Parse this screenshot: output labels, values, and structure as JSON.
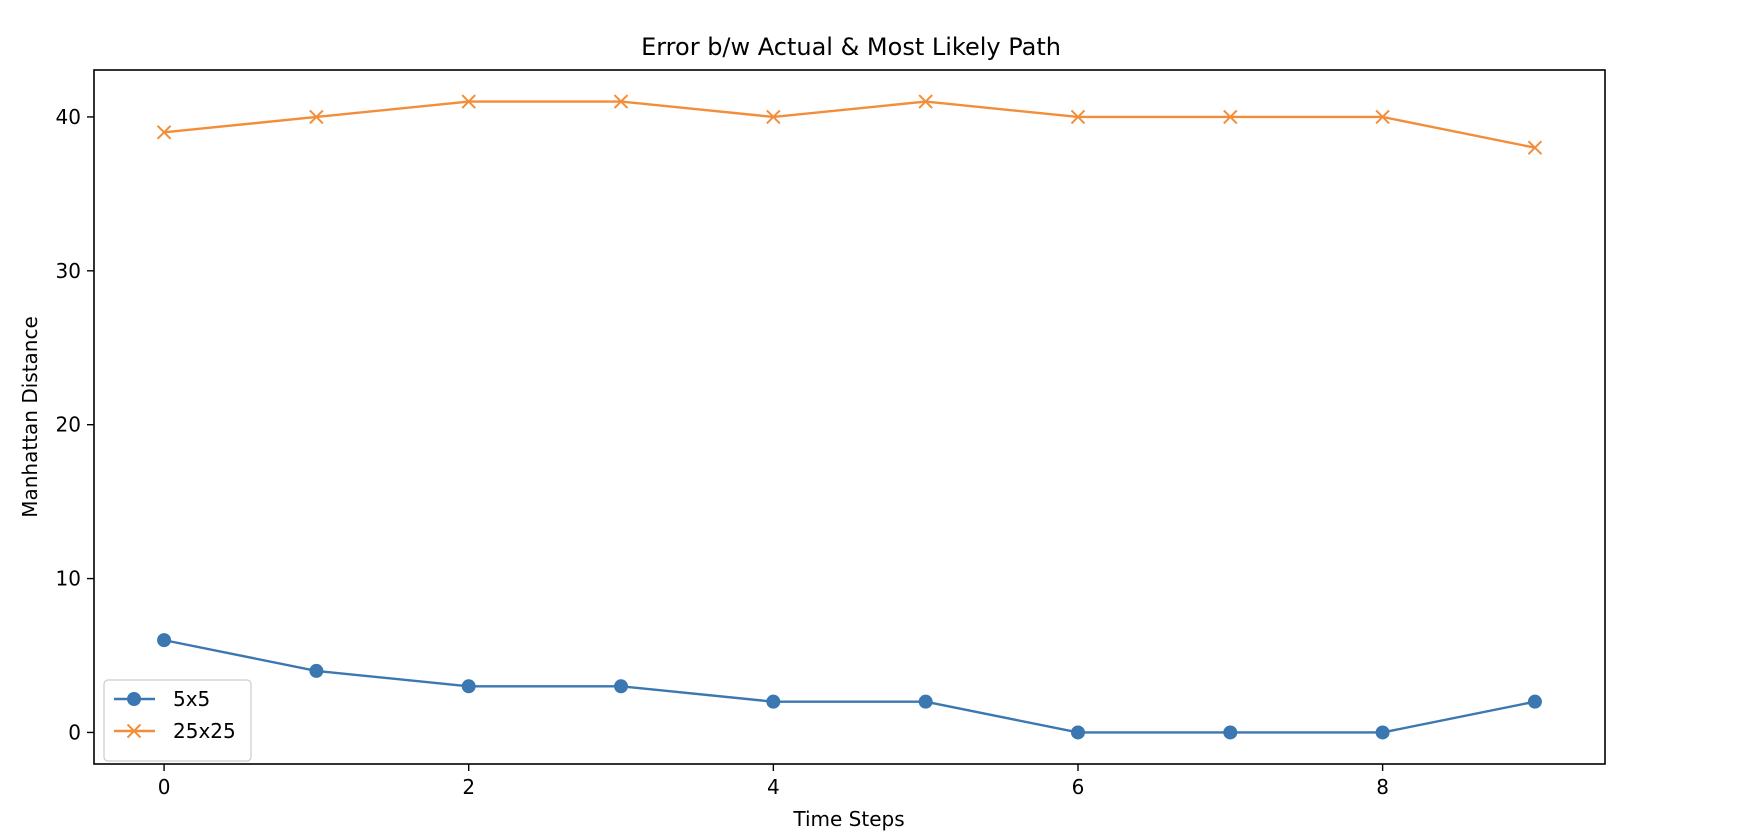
{
  "chart_data": {
    "type": "line",
    "title": "Error b/w Actual & Most Likely Path",
    "xlabel": "Time Steps",
    "ylabel": "Manhattan Distance",
    "x": [
      0,
      1,
      2,
      3,
      4,
      5,
      6,
      7,
      8,
      9
    ],
    "xticks": [
      0,
      2,
      4,
      6,
      8
    ],
    "yticks": [
      0,
      10,
      20,
      30,
      40
    ],
    "xlim": [
      -0.46,
      9.46
    ],
    "ylim": [
      -2.05,
      43.05
    ],
    "grid": false,
    "legend_position": "lower-left",
    "series": [
      {
        "name": "5x5",
        "marker": "circle",
        "color": "#3b77b0",
        "values": [
          6,
          4,
          3,
          3,
          2,
          2,
          0,
          0,
          0,
          2
        ]
      },
      {
        "name": "25x25",
        "marker": "x",
        "color": "#f28e3a",
        "values": [
          39,
          40,
          41,
          41,
          40,
          41,
          40,
          40,
          40,
          38
        ]
      }
    ]
  }
}
